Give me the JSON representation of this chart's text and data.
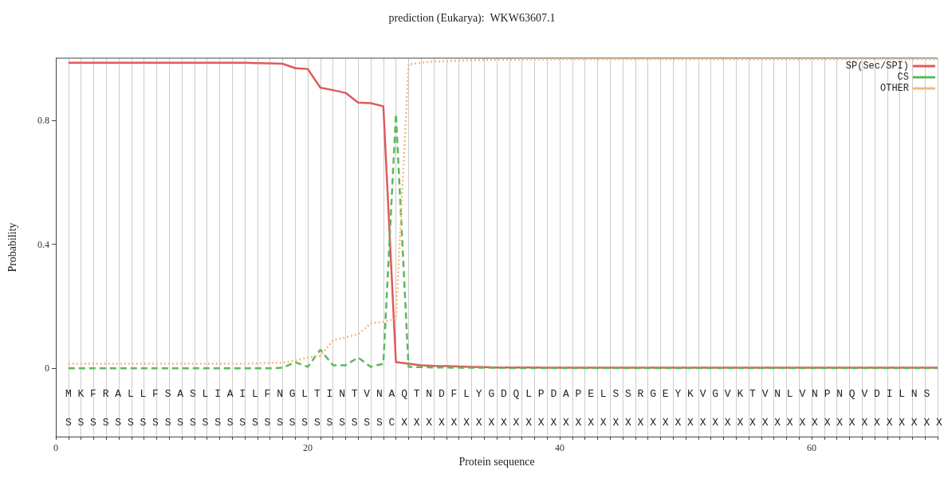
{
  "chart_data": {
    "type": "line",
    "title": "prediction (Eukarya):  WKW63607.1",
    "xlabel": "Protein sequence",
    "ylabel": "Probability",
    "x": [
      1,
      2,
      3,
      4,
      5,
      6,
      7,
      8,
      9,
      10,
      11,
      12,
      13,
      14,
      15,
      16,
      17,
      18,
      19,
      20,
      21,
      22,
      23,
      24,
      25,
      26,
      27,
      28,
      29,
      30,
      31,
      32,
      33,
      34,
      35,
      36,
      37,
      38,
      39,
      40,
      41,
      42,
      43,
      44,
      45,
      46,
      47,
      48,
      49,
      50,
      51,
      52,
      53,
      54,
      55,
      56,
      57,
      58,
      59,
      60,
      61,
      62,
      63,
      64,
      65,
      66,
      67,
      68,
      69,
      70
    ],
    "series": [
      {
        "name": "SP(Sec/SPI)",
        "color": "#e05a5a",
        "line_style": "solid",
        "values": [
          0.985,
          0.985,
          0.985,
          0.985,
          0.985,
          0.985,
          0.985,
          0.985,
          0.985,
          0.985,
          0.985,
          0.985,
          0.985,
          0.985,
          0.985,
          0.984,
          0.983,
          0.982,
          0.968,
          0.965,
          0.905,
          0.897,
          0.888,
          0.857,
          0.855,
          0.845,
          0.02,
          0.015,
          0.01,
          0.008,
          0.007,
          0.006,
          0.005,
          0.004,
          0.003,
          0.003,
          0.003,
          0.003,
          0.002,
          0.002,
          0.002,
          0.002,
          0.002,
          0.002,
          0.002,
          0.002,
          0.002,
          0.002,
          0.002,
          0.002,
          0.002,
          0.002,
          0.002,
          0.002,
          0.002,
          0.002,
          0.002,
          0.002,
          0.002,
          0.002,
          0.002,
          0.002,
          0.002,
          0.002,
          0.002,
          0.002,
          0.002,
          0.002,
          0.002,
          0.002
        ]
      },
      {
        "name": "CS",
        "color": "#5cb85c",
        "line_style": "dashed",
        "values": [
          0,
          0,
          0,
          0,
          0,
          0,
          0,
          0,
          0,
          0,
          0,
          0,
          0,
          0,
          0,
          0,
          0,
          0.002,
          0.02,
          0.005,
          0.06,
          0.01,
          0.01,
          0.035,
          0.005,
          0.015,
          0.82,
          0.005,
          0.004,
          0.003,
          0.003,
          0.002,
          0.002,
          0.002,
          0.002,
          0.001,
          0.001,
          0.001,
          0.001,
          0.001,
          0.001,
          0.001,
          0.001,
          0.001,
          0.001,
          0.001,
          0.001,
          0.001,
          0.001,
          0.001,
          0.001,
          0.001,
          0.001,
          0.001,
          0.001,
          0.001,
          0.001,
          0.001,
          0.001,
          0.001,
          0.001,
          0.001,
          0.001,
          0.001,
          0.001,
          0.001,
          0.001,
          0.001,
          0.001,
          0.001
        ]
      },
      {
        "name": "OTHER",
        "color": "#f5b87a",
        "line_style": "dotted",
        "values": [
          0.015,
          0.015,
          0.015,
          0.015,
          0.015,
          0.015,
          0.015,
          0.015,
          0.015,
          0.015,
          0.015,
          0.015,
          0.015,
          0.015,
          0.015,
          0.016,
          0.017,
          0.018,
          0.025,
          0.035,
          0.04,
          0.09,
          0.1,
          0.11,
          0.145,
          0.15,
          0.16,
          0.98,
          0.985,
          0.99,
          0.99,
          0.992,
          0.993,
          0.994,
          0.995,
          0.995,
          0.996,
          0.996,
          0.996,
          0.997,
          0.997,
          0.997,
          0.997,
          0.997,
          0.997,
          0.997,
          0.997,
          0.997,
          0.997,
          0.997,
          0.997,
          0.997,
          0.997,
          0.997,
          0.997,
          0.997,
          0.997,
          0.997,
          0.997,
          0.997,
          0.997,
          0.997,
          0.997,
          0.997,
          0.997,
          0.997,
          0.997,
          0.997,
          0.997,
          0.997
        ]
      }
    ],
    "xlim": [
      0,
      70
    ],
    "xticks": [
      0,
      {
        "value": 1,
        "label": null
      },
      {
        "value": 2,
        "label": null
      },
      {
        "value": 3,
        "label": null
      },
      {
        "value": 4,
        "label": null
      },
      {
        "value": 5,
        "label": null
      },
      {
        "value": 6,
        "label": null
      },
      {
        "value": 7,
        "label": null
      },
      {
        "value": 8,
        "label": null
      },
      {
        "value": 9,
        "label": null
      },
      {
        "value": 10,
        "label": null
      },
      {
        "value": 11,
        "label": null
      },
      {
        "value": 12,
        "label": null
      },
      {
        "value": 13,
        "label": null
      },
      {
        "value": 14,
        "label": null
      },
      {
        "value": 15,
        "label": null
      },
      {
        "value": 16,
        "label": null
      },
      {
        "value": 17,
        "label": null
      },
      {
        "value": 18,
        "label": null
      },
      {
        "value": 19,
        "label": null
      },
      20,
      {
        "value": 21,
        "label": null
      },
      {
        "value": 22,
        "label": null
      },
      {
        "value": 23,
        "label": null
      },
      {
        "value": 24,
        "label": null
      },
      {
        "value": 25,
        "label": null
      },
      {
        "value": 26,
        "label": null
      },
      {
        "value": 27,
        "label": null
      },
      {
        "value": 28,
        "label": null
      },
      {
        "value": 29,
        "label": null
      },
      {
        "value": 30,
        "label": null
      },
      {
        "value": 31,
        "label": null
      },
      {
        "value": 32,
        "label": null
      },
      {
        "value": 33,
        "label": null
      },
      {
        "value": 34,
        "label": null
      },
      {
        "value": 35,
        "label": null
      },
      {
        "value": 36,
        "label": null
      },
      {
        "value": 37,
        "label": null
      },
      {
        "value": 38,
        "label": null
      },
      {
        "value": 39,
        "label": null
      },
      40,
      {
        "value": 41,
        "label": null
      },
      {
        "value": 42,
        "label": null
      },
      {
        "value": 43,
        "label": null
      },
      {
        "value": 44,
        "label": null
      },
      {
        "value": 45,
        "label": null
      },
      {
        "value": 46,
        "label": null
      },
      {
        "value": 47,
        "label": null
      },
      {
        "value": 48,
        "label": null
      },
      {
        "value": 49,
        "label": null
      },
      {
        "value": 50,
        "label": null
      },
      {
        "value": 51,
        "label": null
      },
      {
        "value": 52,
        "label": null
      },
      {
        "value": 53,
        "label": null
      },
      {
        "value": 54,
        "label": null
      },
      {
        "value": 55,
        "label": null
      },
      {
        "value": 56,
        "label": null
      },
      {
        "value": 57,
        "label": null
      },
      {
        "value": 58,
        "label": null
      },
      {
        "value": 59,
        "label": null
      },
      60,
      {
        "value": 61,
        "label": null
      },
      {
        "value": 62,
        "label": null
      },
      {
        "value": 63,
        "label": null
      },
      {
        "value": 64,
        "label": null
      },
      {
        "value": 65,
        "label": null
      },
      {
        "value": 66,
        "label": null
      },
      {
        "value": 67,
        "label": null
      },
      {
        "value": 68,
        "label": null
      },
      {
        "value": 69,
        "label": null
      },
      {
        "value": 70,
        "label": null
      }
    ],
    "ylim": [
      -0.22,
      1.0
    ],
    "yticks": [
      0,
      0.4,
      0.8
    ],
    "grid": "x",
    "legend": "top right",
    "marker": "none",
    "annotations": [
      "M K F R A L L F S A S L I A I L F N G L T I N T V N A Q T N D F L Y G D Q L P D A P E L S S R G E Y K V G V K T V N L V N P N Q V D I L N S",
      "S S S S S S S S S S S S S S S S S S S S S S S S S S C X X X X X X X X X X X X X X X X X X X X X X X X X X X X X X X X X X X X X X X X X X X X"
    ]
  }
}
